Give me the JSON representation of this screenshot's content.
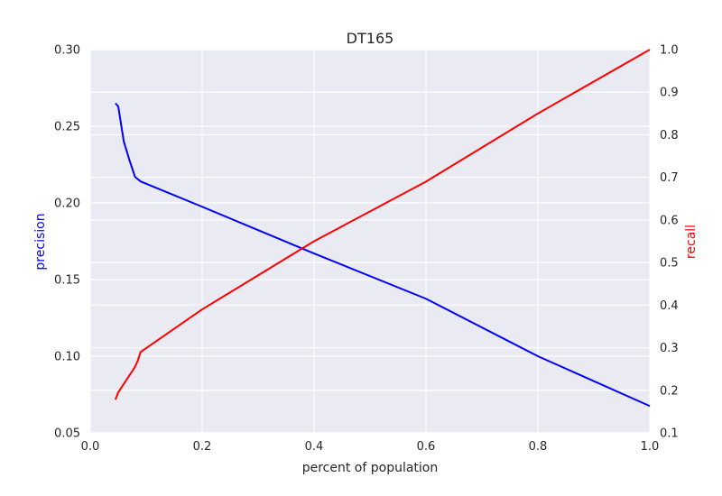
{
  "chart_data": {
    "type": "line",
    "title": "DT165",
    "xlabel": "percent of population",
    "ylabel_left": "precision",
    "ylabel_right": "recall",
    "xlim": [
      0.0,
      1.0
    ],
    "ylim_left": [
      0.05,
      0.3
    ],
    "ylim_right": [
      0.1,
      1.0
    ],
    "grid": true,
    "x_ticks": [
      "0.0",
      "0.2",
      "0.4",
      "0.6",
      "0.8",
      "1.0"
    ],
    "y_left_ticks": [
      "0.05",
      "0.10",
      "0.15",
      "0.20",
      "0.25",
      "0.30"
    ],
    "y_right_ticks": [
      "0.1",
      "0.2",
      "0.3",
      "0.4",
      "0.5",
      "0.6",
      "0.7",
      "0.8",
      "0.9",
      "1.0"
    ],
    "colors": {
      "precision": "#0000ff",
      "recall": "#ff0000",
      "plot_background": "#eaeaf2",
      "grid": "#ffffff",
      "precision_label": "#0000ff",
      "recall_label": "#ff0000"
    },
    "series": [
      {
        "axis": "left",
        "color": "#0000ff",
        "x": [
          0.045,
          0.05,
          0.06,
          0.07,
          0.08,
          0.09,
          0.2,
          0.4,
          0.6,
          0.8,
          1.0
        ],
        "y": [
          0.265,
          0.263,
          0.24,
          0.228,
          0.217,
          0.214,
          0.1975,
          0.167,
          0.1375,
          0.1,
          0.0675
        ]
      },
      {
        "axis": "right",
        "color": "#ff0000",
        "x": [
          0.045,
          0.05,
          0.06,
          0.07,
          0.08,
          0.085,
          0.09,
          0.2,
          0.4,
          0.6,
          0.8,
          1.0
        ],
        "y": [
          0.178,
          0.195,
          0.215,
          0.235,
          0.255,
          0.27,
          0.29,
          0.39,
          0.55,
          0.69,
          0.85,
          1.0
        ]
      }
    ]
  }
}
